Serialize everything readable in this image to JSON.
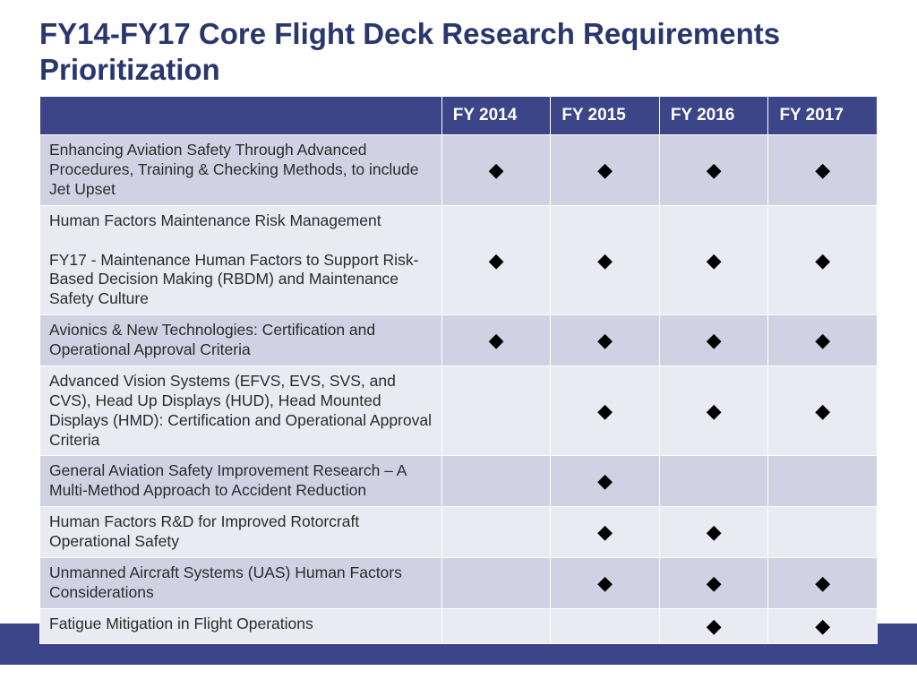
{
  "title": "FY14-FY17 Core Flight Deck Research Requirements Prioritization",
  "colors": {
    "title": "#29376d",
    "header_bg": "#3b4588",
    "header_fg": "#ffffff",
    "row_odd_bg": "#d0d2e4",
    "row_even_bg": "#e9eaf2",
    "marker": "#000000",
    "border": "#ffffff",
    "footer_bar": "#3b4588"
  },
  "table": {
    "type": "table",
    "col_widths_percent": [
      48,
      13,
      13,
      13,
      13
    ],
    "header": [
      "",
      "FY 2014",
      "FY 2015",
      "FY 2016",
      "FY 2017"
    ],
    "marker_glyph": "◆",
    "title_fontsize": 33,
    "header_fontsize": 19,
    "cell_fontsize": 17.5,
    "marker_fontsize": 22,
    "rows": [
      {
        "label": "Enhancing Aviation Safety Through Advanced Procedures, Training & Checking Methods, to include Jet Upset",
        "marks": [
          true,
          true,
          true,
          true
        ]
      },
      {
        "label": "Human Factors Maintenance Risk Management\n\nFY17 - Maintenance Human Factors to Support Risk-Based Decision Making (RBDM) and Maintenance Safety Culture",
        "marks": [
          true,
          true,
          true,
          true
        ]
      },
      {
        "label": "Avionics & New Technologies: Certification and Operational Approval Criteria",
        "marks": [
          true,
          true,
          true,
          true
        ]
      },
      {
        "label": "Advanced Vision Systems (EFVS, EVS, SVS, and CVS), Head Up Displays (HUD), Head Mounted Displays (HMD): Certification and Operational Approval Criteria",
        "marks": [
          false,
          true,
          true,
          true
        ]
      },
      {
        "label": "General Aviation Safety Improvement Research – A Multi-Method Approach to Accident Reduction",
        "marks": [
          false,
          true,
          false,
          false
        ]
      },
      {
        "label": "Human Factors R&D for Improved Rotorcraft Operational Safety",
        "marks": [
          false,
          true,
          true,
          false
        ]
      },
      {
        "label": "Unmanned Aircraft Systems (UAS) Human Factors Considerations",
        "marks": [
          false,
          true,
          true,
          true
        ]
      },
      {
        "label": "Fatigue Mitigation in Flight Operations",
        "marks": [
          false,
          false,
          true,
          true
        ]
      }
    ]
  }
}
